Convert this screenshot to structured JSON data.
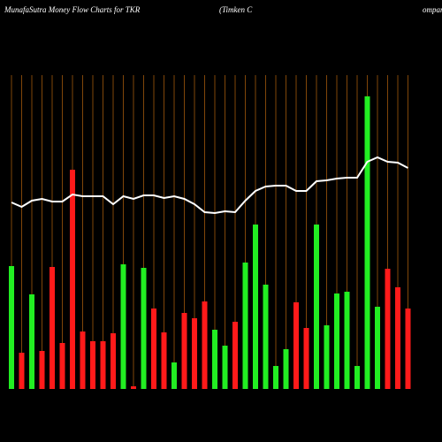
{
  "chart_data": {
    "type": "bar",
    "title": "MunafaSutra  Money Flow  Charts for TKR",
    "subtitle_parts": [
      "(Timken  C",
      "ompany"
    ],
    "grid": true,
    "grid_color": "#a0580c",
    "line_color": "#ffffff",
    "bar_colors": [
      "#22ee22",
      "#ff1a1a",
      "#22ee22",
      "#ff1a1a",
      "#ff1a1a",
      "#ff1a1a",
      "#ff1a1a",
      "#ff1a1a",
      "#ff1a1a",
      "#ff1a1a",
      "#ff1a1a",
      "#22ee22",
      "#ff1a1a",
      "#22ee22",
      "#ff1a1a",
      "#ff1a1a",
      "#22ee22",
      "#ff1a1a",
      "#ff1a1a",
      "#ff1a1a",
      "#22ee22",
      "#22ee22",
      "#ff1a1a",
      "#22ee22",
      "#22ee22",
      "#22ee22",
      "#22ee22",
      "#22ee22",
      "#ff1a1a",
      "#ff1a1a",
      "#22ee22",
      "#22ee22",
      "#22ee22",
      "#22ee22",
      "#22ee22",
      "#22ee22",
      "#22ee22",
      "#ff1a1a",
      "#ff1a1a",
      "#ff1a1a"
    ],
    "values": [
      139,
      41,
      107,
      43,
      138,
      52,
      248,
      65,
      54,
      54,
      63,
      141,
      3,
      137,
      91,
      64,
      30,
      86,
      80,
      99,
      67,
      49,
      76,
      143,
      186,
      118,
      26,
      45,
      98,
      69,
      186,
      72,
      108,
      110,
      26,
      331,
      93,
      136,
      115,
      91
    ],
    "line_values": [
      211,
      206,
      213,
      215,
      212,
      212,
      220,
      218,
      218,
      218,
      209,
      218,
      215,
      219,
      219,
      216,
      218,
      215,
      209,
      200,
      199,
      201,
      200,
      213,
      224,
      229,
      230,
      230,
      224,
      224,
      235,
      236,
      238,
      239,
      239,
      257,
      262,
      257,
      256,
      250
    ]
  }
}
